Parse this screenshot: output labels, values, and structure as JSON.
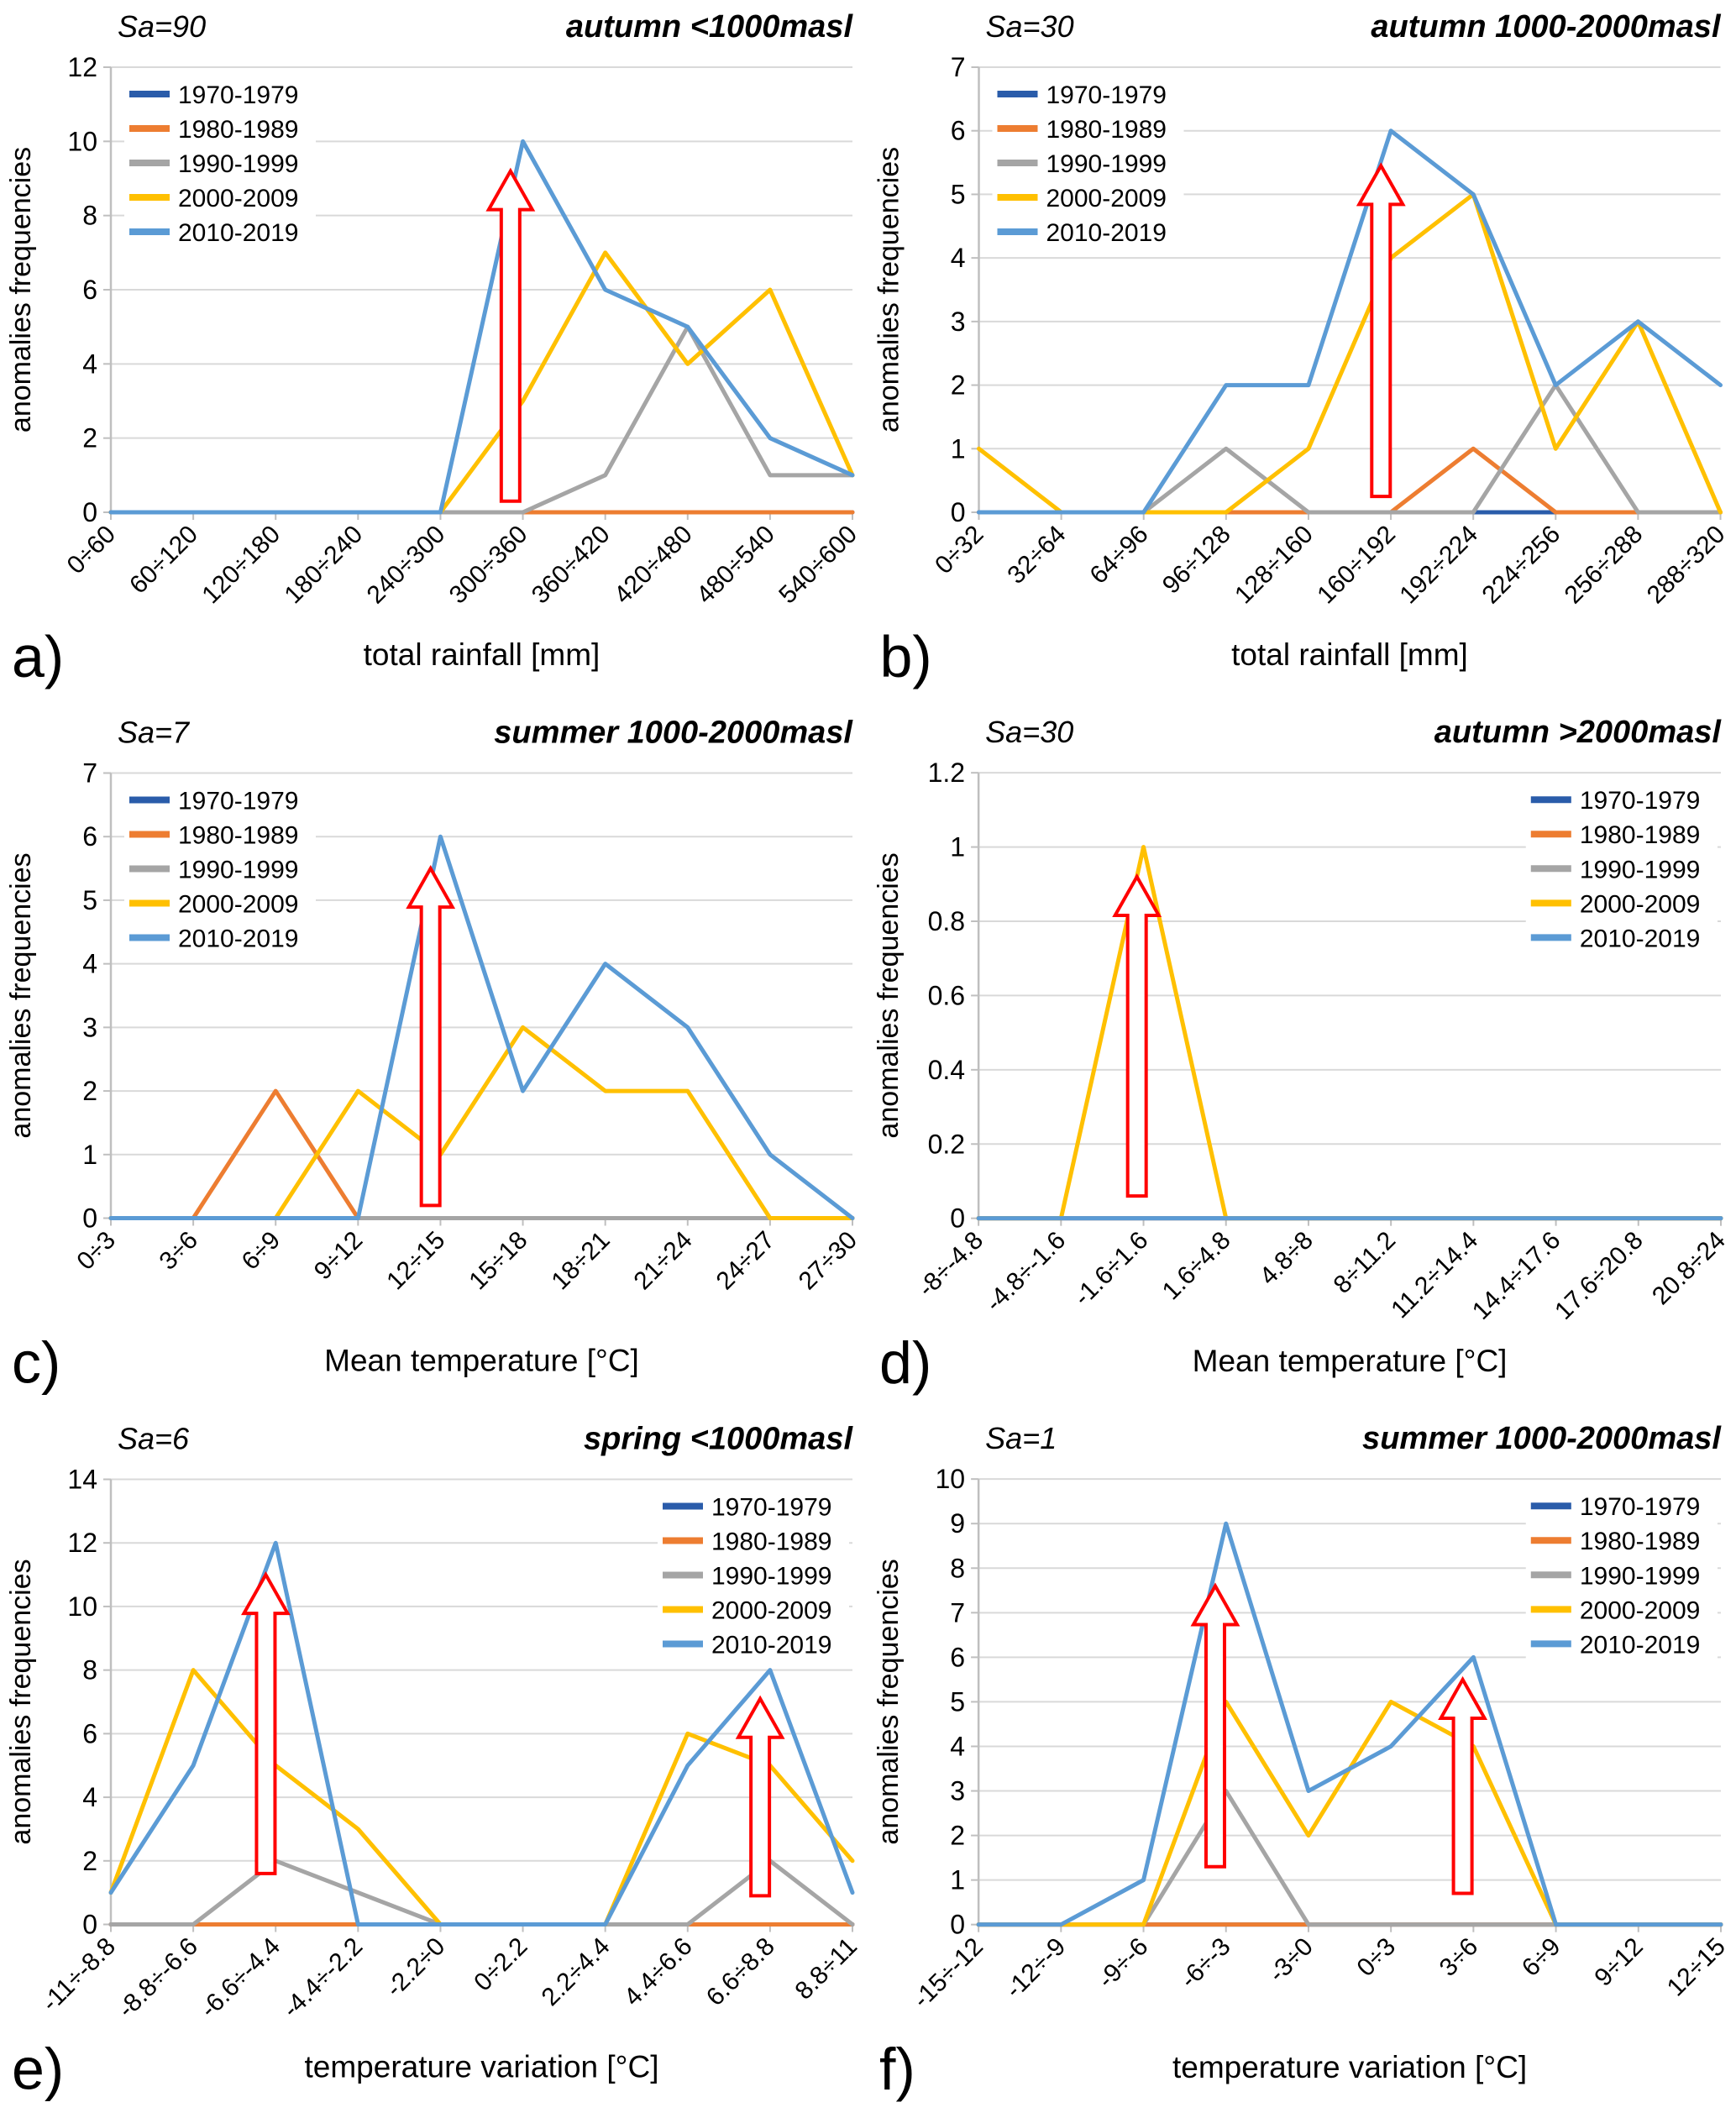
{
  "arrow_color": "#FF0000",
  "grid_color": "#D9D9D9",
  "axis_color": "#BFBFBF",
  "chart_data": [
    {
      "id": "a",
      "type": "line",
      "letter": "a)",
      "sa_label": "Sa=90",
      "title": "autumn <1000masl",
      "xlabel": "total rainfall [mm]",
      "ylabel": "anomalies frequencies",
      "legend_position": "top-left",
      "ylim": [
        0,
        12
      ],
      "yticks": [
        0,
        2,
        4,
        6,
        8,
        10,
        12
      ],
      "categories": [
        "0÷60",
        "60÷120",
        "120÷180",
        "180÷240",
        "240÷300",
        "300÷360",
        "360÷420",
        "420÷480",
        "480÷540",
        "540÷600"
      ],
      "series": [
        {
          "name": "1970-1979",
          "color": "#2A5CAA",
          "values": [
            0,
            0,
            0,
            0,
            0,
            0,
            0,
            0,
            0,
            0
          ]
        },
        {
          "name": "1980-1989",
          "color": "#ED7D31",
          "values": [
            0,
            0,
            0,
            0,
            0,
            0,
            0,
            0,
            0,
            0
          ]
        },
        {
          "name": "1990-1999",
          "color": "#A5A5A5",
          "values": [
            0,
            0,
            0,
            0,
            0,
            0,
            1,
            5,
            1,
            1
          ]
        },
        {
          "name": "2000-2009",
          "color": "#FFC000",
          "values": [
            0,
            0,
            0,
            0,
            0,
            3,
            7,
            4,
            6,
            1
          ]
        },
        {
          "name": "2010-2019",
          "color": "#5B9BD5",
          "values": [
            0,
            0,
            0,
            0,
            0,
            10,
            6,
            5,
            2,
            1
          ]
        }
      ],
      "arrows": [
        {
          "x": 4.85,
          "base": 0.3,
          "tip": 9.2
        }
      ]
    },
    {
      "id": "b",
      "type": "line",
      "letter": "b)",
      "sa_label": "Sa=30",
      "title": "autumn 1000-2000masl",
      "xlabel": "total rainfall [mm]",
      "ylabel": "anomalies frequencies",
      "legend_position": "top-left",
      "ylim": [
        0,
        7
      ],
      "yticks": [
        0,
        1,
        2,
        3,
        4,
        5,
        6,
        7
      ],
      "categories": [
        "0÷32",
        "32÷64",
        "64÷96",
        "96÷128",
        "128÷160",
        "160÷192",
        "192÷224",
        "224÷256",
        "256÷288",
        "288÷320"
      ],
      "series": [
        {
          "name": "1970-1979",
          "color": "#2A5CAA",
          "values": [
            0,
            0,
            0,
            0,
            0,
            0,
            0,
            0,
            0,
            0
          ]
        },
        {
          "name": "1980-1989",
          "color": "#ED7D31",
          "values": [
            0,
            0,
            0,
            0,
            0,
            0,
            1,
            0,
            0,
            0
          ]
        },
        {
          "name": "1990-1999",
          "color": "#A5A5A5",
          "values": [
            0,
            0,
            0,
            1,
            0,
            0,
            0,
            2,
            0,
            0
          ]
        },
        {
          "name": "2000-2009",
          "color": "#FFC000",
          "values": [
            1,
            0,
            0,
            0,
            1,
            4,
            5,
            1,
            3,
            0
          ]
        },
        {
          "name": "2010-2019",
          "color": "#5B9BD5",
          "values": [
            0,
            0,
            0,
            2,
            2,
            6,
            5,
            2,
            3,
            2
          ]
        }
      ],
      "arrows": [
        {
          "x": 4.88,
          "base": 0.25,
          "tip": 5.45
        }
      ]
    },
    {
      "id": "c",
      "type": "line",
      "letter": "c)",
      "sa_label": "Sa=7",
      "title": "summer 1000-2000masl",
      "xlabel": "Mean temperature [°C]",
      "ylabel": "anomalies frequencies",
      "legend_position": "top-left",
      "ylim": [
        0,
        7
      ],
      "yticks": [
        0,
        1,
        2,
        3,
        4,
        5,
        6,
        7
      ],
      "categories": [
        "0÷3",
        "3÷6",
        "6÷9",
        "9÷12",
        "12÷15",
        "15÷18",
        "18÷21",
        "21÷24",
        "24÷27",
        "27÷30"
      ],
      "series": [
        {
          "name": "1970-1979",
          "color": "#2A5CAA",
          "values": [
            0,
            0,
            0,
            0,
            0,
            0,
            0,
            0,
            0,
            0
          ]
        },
        {
          "name": "1980-1989",
          "color": "#ED7D31",
          "values": [
            0,
            0,
            2,
            0,
            0,
            0,
            0,
            0,
            0,
            0
          ]
        },
        {
          "name": "1990-1999",
          "color": "#A5A5A5",
          "values": [
            0,
            0,
            0,
            0,
            0,
            0,
            0,
            0,
            0,
            0
          ]
        },
        {
          "name": "2000-2009",
          "color": "#FFC000",
          "values": [
            0,
            0,
            0,
            2,
            1,
            3,
            2,
            2,
            0,
            0
          ]
        },
        {
          "name": "2010-2019",
          "color": "#5B9BD5",
          "values": [
            0,
            0,
            0,
            0,
            6,
            2,
            4,
            3,
            1,
            0
          ]
        }
      ],
      "arrows": [
        {
          "x": 3.88,
          "base": 0.2,
          "tip": 5.5
        }
      ]
    },
    {
      "id": "d",
      "type": "line",
      "letter": "d)",
      "sa_label": "Sa=30",
      "title": "autumn >2000masl",
      "xlabel": "Mean temperature [°C]",
      "ylabel": "anomalies frequencies",
      "legend_position": "top-right",
      "ylim": [
        0,
        1.2
      ],
      "yticks": [
        0,
        0.2,
        0.4,
        0.6,
        0.8,
        1,
        1.2
      ],
      "categories": [
        "-8÷-4.8",
        "-4.8÷-1.6",
        "-1.6÷1.6",
        "1.6÷4.8",
        "4.8÷8",
        "8÷11.2",
        "11.2÷14.4",
        "14.4÷17.6",
        "17.6÷20.8",
        "20.8÷24"
      ],
      "series": [
        {
          "name": "1970-1979",
          "color": "#2A5CAA",
          "values": [
            0,
            0,
            0,
            0,
            0,
            0,
            0,
            0,
            0,
            0
          ]
        },
        {
          "name": "1980-1989",
          "color": "#ED7D31",
          "values": [
            0,
            0,
            0,
            0,
            0,
            0,
            0,
            0,
            0,
            0
          ]
        },
        {
          "name": "1990-1999",
          "color": "#A5A5A5",
          "values": [
            0,
            0,
            0,
            0,
            0,
            0,
            0,
            0,
            0,
            0
          ]
        },
        {
          "name": "2000-2009",
          "color": "#FFC000",
          "values": [
            0,
            0,
            1,
            0,
            0,
            0,
            0,
            0,
            0,
            0
          ]
        },
        {
          "name": "2010-2019",
          "color": "#5B9BD5",
          "values": [
            0,
            0,
            0,
            0,
            0,
            0,
            0,
            0,
            0,
            0
          ]
        }
      ],
      "arrows": [
        {
          "x": 1.92,
          "base": 0.06,
          "tip": 0.92
        }
      ]
    },
    {
      "id": "e",
      "type": "line",
      "letter": "e)",
      "sa_label": "Sa=6",
      "title": "spring <1000masl",
      "xlabel": "temperature variation [°C]",
      "ylabel": "anomalies frequencies",
      "legend_position": "top-right",
      "ylim": [
        0,
        14
      ],
      "yticks": [
        0,
        2,
        4,
        6,
        8,
        10,
        12,
        14
      ],
      "categories": [
        "-11÷-8.8",
        "-8.8÷-6.6",
        "-6.6÷-4.4",
        "-4.4÷-2.2",
        "-2.2÷0",
        "0÷2.2",
        "2.2÷4.4",
        "4.4÷6.6",
        "6.6÷8.8",
        "8.8÷11"
      ],
      "series": [
        {
          "name": "1970-1979",
          "color": "#2A5CAA",
          "values": [
            0,
            0,
            0,
            0,
            0,
            0,
            0,
            0,
            0,
            0
          ]
        },
        {
          "name": "1980-1989",
          "color": "#ED7D31",
          "values": [
            0,
            0,
            0,
            0,
            0,
            0,
            0,
            0,
            0,
            0
          ]
        },
        {
          "name": "1990-1999",
          "color": "#A5A5A5",
          "values": [
            0,
            0,
            2,
            1,
            0,
            0,
            0,
            0,
            2,
            0
          ]
        },
        {
          "name": "2000-2009",
          "color": "#FFC000",
          "values": [
            1,
            8,
            5,
            3,
            0,
            0,
            0,
            6,
            5,
            2
          ]
        },
        {
          "name": "2010-2019",
          "color": "#5B9BD5",
          "values": [
            1,
            5,
            12,
            0,
            0,
            0,
            0,
            5,
            8,
            1
          ]
        }
      ],
      "arrows": [
        {
          "x": 1.88,
          "base": 1.6,
          "tip": 11.0
        },
        {
          "x": 7.88,
          "base": 0.9,
          "tip": 7.1
        }
      ]
    },
    {
      "id": "f",
      "type": "line",
      "letter": "f)",
      "sa_label": "Sa=1",
      "title": "summer 1000-2000masl",
      "xlabel": "temperature variation [°C]",
      "ylabel": "anomalies frequencies",
      "legend_position": "top-right",
      "ylim": [
        0,
        10
      ],
      "yticks": [
        0,
        1,
        2,
        3,
        4,
        5,
        6,
        7,
        8,
        9,
        10
      ],
      "categories": [
        "-15÷-12",
        "-12÷-9",
        "-9÷-6",
        "-6÷-3",
        "-3÷0",
        "0÷3",
        "3÷6",
        "6÷9",
        "9÷12",
        "12÷15"
      ],
      "series": [
        {
          "name": "1970-1979",
          "color": "#2A5CAA",
          "values": [
            0,
            0,
            0,
            0,
            0,
            0,
            0,
            0,
            0,
            0
          ]
        },
        {
          "name": "1980-1989",
          "color": "#ED7D31",
          "values": [
            0,
            0,
            0,
            0,
            0,
            0,
            0,
            0,
            0,
            0
          ]
        },
        {
          "name": "1990-1999",
          "color": "#A5A5A5",
          "values": [
            0,
            0,
            0,
            3,
            0,
            0,
            0,
            0,
            0,
            0
          ]
        },
        {
          "name": "2000-2009",
          "color": "#FFC000",
          "values": [
            0,
            0,
            0,
            5,
            2,
            5,
            4,
            0,
            0,
            0
          ]
        },
        {
          "name": "2010-2019",
          "color": "#5B9BD5",
          "values": [
            0,
            0,
            1,
            9,
            3,
            4,
            6,
            0,
            0,
            0
          ]
        }
      ],
      "arrows": [
        {
          "x": 2.87,
          "base": 1.3,
          "tip": 7.6
        },
        {
          "x": 5.87,
          "base": 0.7,
          "tip": 5.5
        }
      ]
    }
  ]
}
